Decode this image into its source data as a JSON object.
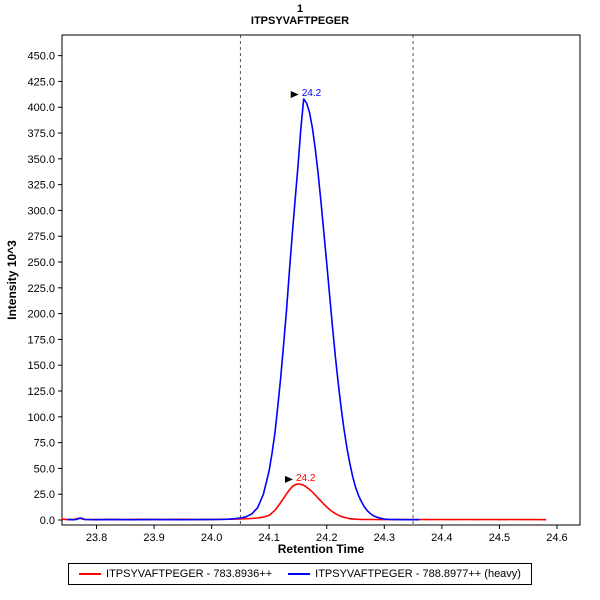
{
  "chart_data": {
    "type": "line",
    "title_line1": "1",
    "title_line2": "ITPSYVAFTPEGER",
    "xlabel": "Retention Time",
    "ylabel": "Intensity 10^3",
    "xlim": [
      23.74,
      24.64
    ],
    "ylim": [
      0,
      470
    ],
    "grid": false,
    "legend_position": "bottom",
    "background_color": "#ffffff",
    "integration_boundaries": [
      24.05,
      24.35
    ],
    "xticks": [
      {
        "v": 23.8,
        "label": "23.8"
      },
      {
        "v": 23.9,
        "label": "23.9"
      },
      {
        "v": 24.0,
        "label": "24.0"
      },
      {
        "v": 24.1,
        "label": "24.1"
      },
      {
        "v": 24.2,
        "label": "24.2"
      },
      {
        "v": 24.3,
        "label": "24.3"
      },
      {
        "v": 24.4,
        "label": "24.4"
      },
      {
        "v": 24.5,
        "label": "24.5"
      },
      {
        "v": 24.6,
        "label": "24.6"
      }
    ],
    "yticks": [
      {
        "v": 0,
        "label": "0.0"
      },
      {
        "v": 25,
        "label": "25.0"
      },
      {
        "v": 50,
        "label": "50.0"
      },
      {
        "v": 75,
        "label": "75.0"
      },
      {
        "v": 100,
        "label": "100.0"
      },
      {
        "v": 125,
        "label": "125.0"
      },
      {
        "v": 150,
        "label": "150.0"
      },
      {
        "v": 175,
        "label": "175.0"
      },
      {
        "v": 200,
        "label": "200.0"
      },
      {
        "v": 225,
        "label": "225.0"
      },
      {
        "v": 250,
        "label": "250.0"
      },
      {
        "v": 275,
        "label": "275.0"
      },
      {
        "v": 300,
        "label": "300.0"
      },
      {
        "v": 325,
        "label": "325.0"
      },
      {
        "v": 350,
        "label": "350.0"
      },
      {
        "v": 375,
        "label": "375.0"
      },
      {
        "v": 400,
        "label": "400.0"
      },
      {
        "v": 425,
        "label": "425.0"
      },
      {
        "v": 450,
        "label": "450.0"
      }
    ],
    "series": [
      {
        "name": "ITPSYVAFTPEGER - 783.8936++",
        "color": "#ff0000",
        "annotation": {
          "label": "24.2",
          "x": 24.15,
          "y": 35
        },
        "points": [
          [
            23.74,
            0.8
          ],
          [
            23.75,
            0.4
          ],
          [
            23.76,
            0.6
          ],
          [
            23.77,
            1.6
          ],
          [
            23.78,
            0.5
          ],
          [
            23.8,
            0.4
          ],
          [
            23.82,
            0.6
          ],
          [
            23.85,
            0.4
          ],
          [
            23.88,
            0.7
          ],
          [
            23.91,
            0.5
          ],
          [
            23.94,
            0.7
          ],
          [
            23.97,
            0.5
          ],
          [
            24.0,
            0.6
          ],
          [
            24.03,
            0.8
          ],
          [
            24.05,
            1.1
          ],
          [
            24.07,
            1.5
          ],
          [
            24.08,
            1.9
          ],
          [
            24.09,
            2.8
          ],
          [
            24.1,
            4.5
          ],
          [
            24.11,
            9.5
          ],
          [
            24.115,
            13
          ],
          [
            24.12,
            17
          ],
          [
            24.125,
            21
          ],
          [
            24.13,
            25.4
          ],
          [
            24.135,
            29
          ],
          [
            24.14,
            32.3
          ],
          [
            24.145,
            34.2
          ],
          [
            24.15,
            35
          ],
          [
            24.155,
            34.5
          ],
          [
            24.16,
            33.6
          ],
          [
            24.165,
            31.8
          ],
          [
            24.17,
            29.7
          ],
          [
            24.175,
            27
          ],
          [
            24.18,
            24.2
          ],
          [
            24.185,
            21.2
          ],
          [
            24.19,
            18.2
          ],
          [
            24.195,
            15.3
          ],
          [
            24.2,
            12.6
          ],
          [
            24.205,
            10.2
          ],
          [
            24.21,
            8
          ],
          [
            24.215,
            6.2
          ],
          [
            24.22,
            4.7
          ],
          [
            24.225,
            3.5
          ],
          [
            24.23,
            2.6
          ],
          [
            24.235,
            1.9
          ],
          [
            24.24,
            1.3
          ],
          [
            24.25,
            0.8
          ],
          [
            24.26,
            0.6
          ],
          [
            24.28,
            0.5
          ],
          [
            24.3,
            0.4
          ],
          [
            24.32,
            0.5
          ],
          [
            24.34,
            0.4
          ],
          [
            24.36,
            0.5
          ],
          [
            24.38,
            0.4
          ],
          [
            24.4,
            0.5
          ],
          [
            24.42,
            0.4
          ],
          [
            24.44,
            0.5
          ],
          [
            24.46,
            0.4
          ],
          [
            24.48,
            0.5
          ],
          [
            24.5,
            0.4
          ],
          [
            24.52,
            0.5
          ],
          [
            24.54,
            0.4
          ],
          [
            24.56,
            0.5
          ],
          [
            24.58,
            0.3
          ]
        ]
      },
      {
        "name": "ITPSYVAFTPEGER - 788.8977++ (heavy)",
        "color": "#0000ff",
        "annotation": {
          "label": "24.2",
          "x": 24.16,
          "y": 408
        },
        "points": [
          [
            23.75,
            0.4
          ],
          [
            23.76,
            0.3
          ],
          [
            23.765,
            0.5
          ],
          [
            23.772,
            2.0
          ],
          [
            23.78,
            0.5
          ],
          [
            23.8,
            0.3
          ],
          [
            23.83,
            0.4
          ],
          [
            23.86,
            0.3
          ],
          [
            23.9,
            0.4
          ],
          [
            23.94,
            0.3
          ],
          [
            23.98,
            0.4
          ],
          [
            24.01,
            0.5
          ],
          [
            24.03,
            0.8
          ],
          [
            24.05,
            1.8
          ],
          [
            24.06,
            3.2
          ],
          [
            24.07,
            6
          ],
          [
            24.08,
            12
          ],
          [
            24.09,
            25
          ],
          [
            24.1,
            48
          ],
          [
            24.105,
            65
          ],
          [
            24.11,
            85
          ],
          [
            24.115,
            110
          ],
          [
            24.12,
            138
          ],
          [
            24.125,
            170
          ],
          [
            24.13,
            203
          ],
          [
            24.135,
            240
          ],
          [
            24.14,
            276
          ],
          [
            24.145,
            310
          ],
          [
            24.15,
            343
          ],
          [
            24.155,
            380
          ],
          [
            24.16,
            408
          ],
          [
            24.165,
            404
          ],
          [
            24.17,
            395
          ],
          [
            24.175,
            380
          ],
          [
            24.18,
            360
          ],
          [
            24.185,
            336
          ],
          [
            24.19,
            308
          ],
          [
            24.195,
            278
          ],
          [
            24.2,
            248
          ],
          [
            24.205,
            218
          ],
          [
            24.21,
            187
          ],
          [
            24.215,
            158
          ],
          [
            24.22,
            132
          ],
          [
            24.225,
            109
          ],
          [
            24.23,
            88
          ],
          [
            24.235,
            70
          ],
          [
            24.24,
            55
          ],
          [
            24.245,
            42
          ],
          [
            24.25,
            32
          ],
          [
            24.255,
            24
          ],
          [
            24.26,
            18
          ],
          [
            24.265,
            13
          ],
          [
            24.27,
            9.3
          ],
          [
            24.275,
            6.6
          ],
          [
            24.28,
            4.5
          ],
          [
            24.285,
            3.1
          ],
          [
            24.29,
            2.1
          ],
          [
            24.3,
            0.9
          ],
          [
            24.31,
            0.5
          ],
          [
            24.32,
            0.4
          ],
          [
            24.34,
            0.3
          ],
          [
            24.36,
            0.3
          ]
        ]
      }
    ]
  }
}
